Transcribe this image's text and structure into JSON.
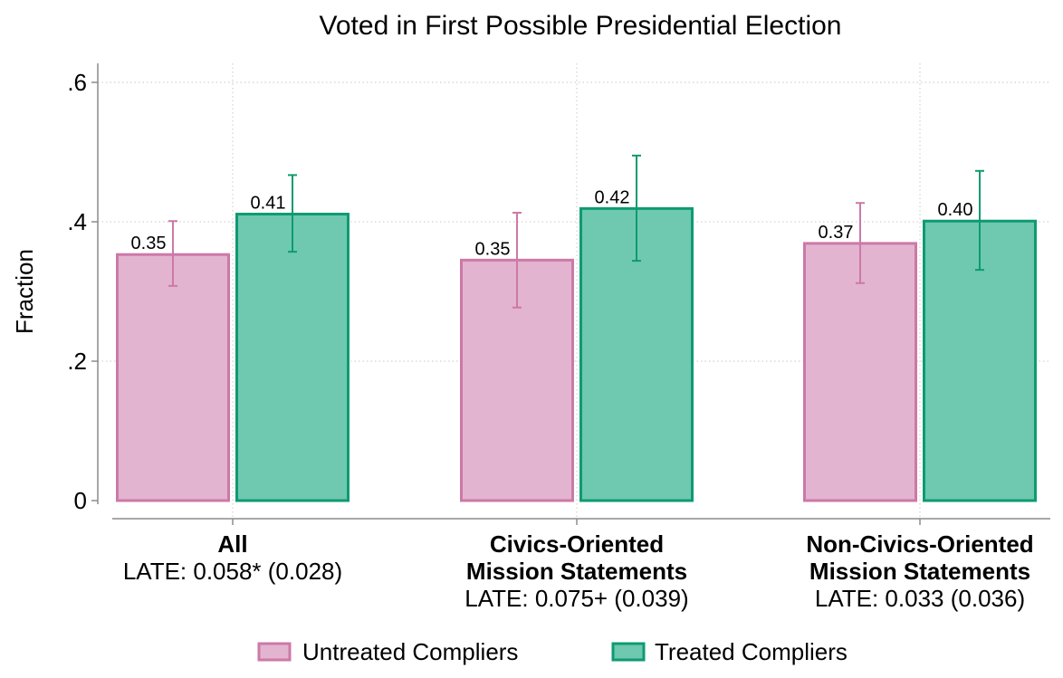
{
  "chart_data": {
    "type": "bar",
    "title": "Voted in First Possible Presidential Election",
    "ylabel": "Fraction",
    "xlabel": "",
    "ylim": [
      0,
      0.6
    ],
    "yticks": [
      {
        "value": 0,
        "label": "0"
      },
      {
        "value": 0.2,
        "label": ".2"
      },
      {
        "value": 0.4,
        "label": ".4"
      },
      {
        "value": 0.6,
        "label": ".6"
      }
    ],
    "grid": true,
    "legend_position": "bottom",
    "categories": [
      {
        "lines": [
          "All"
        ],
        "late": "LATE: 0.058* (0.028)"
      },
      {
        "lines": [
          "Civics-Oriented",
          "Mission Statements"
        ],
        "late": "LATE: 0.075+ (0.039)"
      },
      {
        "lines": [
          "Non-Civics-Oriented",
          "Mission Statements"
        ],
        "late": "LATE: 0.033 (0.036)"
      }
    ],
    "series": [
      {
        "name": "Untreated Compliers",
        "fill": "#e3b4cf",
        "stroke": "#cc79a7",
        "values": [
          0.353,
          0.345,
          0.369
        ],
        "labels": [
          "0.35",
          "0.35",
          "0.37"
        ],
        "ci_low": [
          0.308,
          0.277,
          0.312
        ],
        "ci_high": [
          0.401,
          0.413,
          0.427
        ]
      },
      {
        "name": "Treated Compliers",
        "fill": "#6ec9b0",
        "stroke": "#0f9a71",
        "values": [
          0.411,
          0.419,
          0.401
        ],
        "labels": [
          "0.41",
          "0.42",
          "0.40"
        ],
        "ci_low": [
          0.357,
          0.344,
          0.331
        ],
        "ci_high": [
          0.467,
          0.495,
          0.473
        ]
      }
    ]
  }
}
